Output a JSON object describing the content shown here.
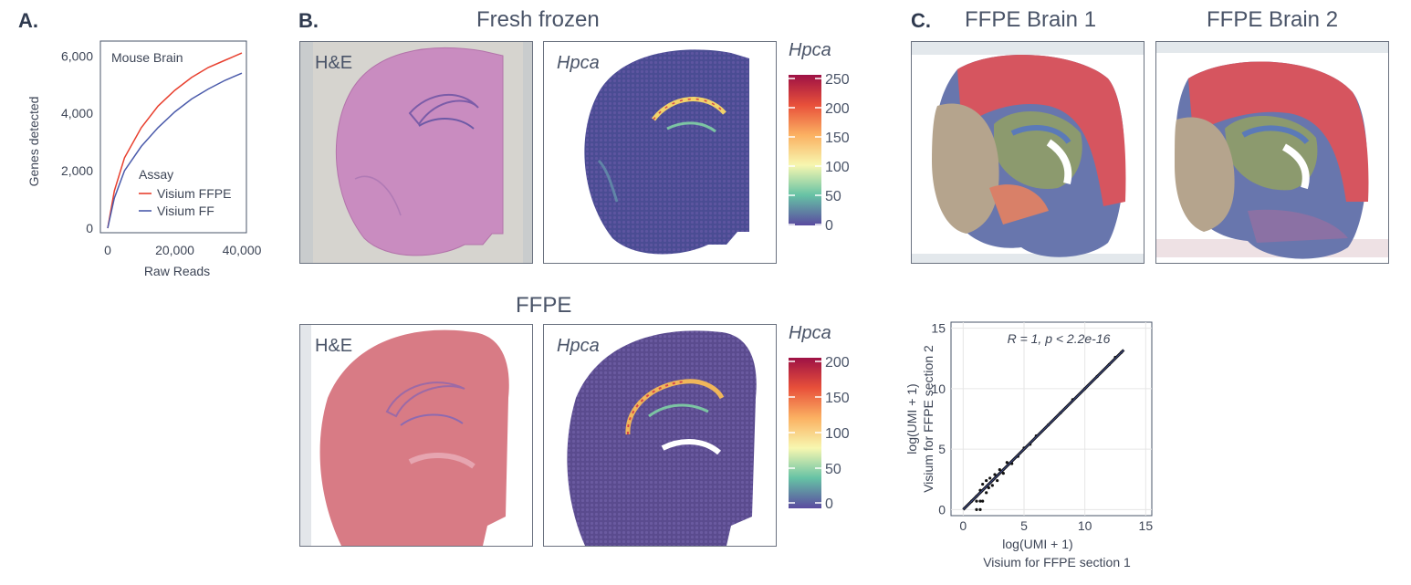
{
  "panel_labels": {
    "a": "A.",
    "b": "B.",
    "c": "C."
  },
  "panel_b": {
    "title_top": "Fresh frozen",
    "title_bottom": "FFPE",
    "he_label": "H&E",
    "gene_label": "Hpca",
    "colorbar_top": {
      "label": "Hpca",
      "ticks": [
        "250",
        "200",
        "150",
        "100",
        "50",
        "0"
      ]
    },
    "colorbar_bottom": {
      "label": "Hpca",
      "ticks": [
        "200",
        "150",
        "100",
        "50",
        "0"
      ]
    }
  },
  "panel_c": {
    "title_left": "FFPE Brain 1",
    "title_right": "FFPE Brain 2"
  },
  "colors": {
    "ffpe_line": "#e8402f",
    "ff_line": "#4b5bab",
    "he_pink": "#cf8ab8",
    "ffpe_pink": "#d9707e",
    "spot_base": "#5b4f9a"
  },
  "chart_data": [
    {
      "type": "line",
      "annotation": "Mouse Brain",
      "xlabel": "Raw Reads",
      "ylabel": "Genes detected",
      "xlim": [
        0,
        40000
      ],
      "ylim": [
        0,
        6200
      ],
      "xticks": [
        "0",
        "20,000",
        "40,000"
      ],
      "yticks": [
        "0",
        "2,000",
        "4,000",
        "6,000"
      ],
      "legend_title": "Assay",
      "legend_position": "center-right",
      "x": [
        0,
        2000,
        5000,
        10000,
        15000,
        20000,
        25000,
        30000,
        35000,
        40000
      ],
      "series": [
        {
          "name": "Visium FFPE",
          "values": [
            0,
            1300,
            2450,
            3500,
            4250,
            4800,
            5250,
            5600,
            5850,
            6100
          ]
        },
        {
          "name": "Visium FF",
          "values": [
            0,
            1050,
            2000,
            2850,
            3500,
            4050,
            4500,
            4850,
            5150,
            5400
          ]
        }
      ]
    },
    {
      "type": "scatter",
      "annotation": "R = 1, p < 2.2e-16",
      "xlabel": "log(UMI + 1)\nVisium for FFPE section 1",
      "ylabel": "log(UMI + 1)\nVisium for FFPE section 2",
      "xlim": [
        -1,
        15.5
      ],
      "ylim": [
        -0.5,
        15.5
      ],
      "xticks": [
        "0",
        "5",
        "10",
        "15"
      ],
      "yticks": [
        "0",
        "5",
        "10",
        "15"
      ],
      "grid": true,
      "trend": {
        "x": [
          0,
          13.2
        ],
        "y": [
          0,
          13.2
        ]
      },
      "x": [
        0.7,
        1.1,
        1.1,
        1.1,
        1.4,
        1.4,
        1.4,
        1.6,
        1.6,
        1.9,
        1.9,
        2.1,
        2.2,
        2.4,
        2.6,
        2.8,
        3.0,
        3.3,
        3.6,
        4.0,
        4.5,
        5.0,
        5.5,
        6.0,
        7.0,
        8.0,
        9.0,
        10.0,
        11.0,
        12.0,
        12.5,
        13.0
      ],
      "y": [
        0.7,
        0.0,
        0.7,
        1.1,
        0.0,
        0.7,
        1.6,
        0.7,
        2.1,
        1.4,
        2.4,
        1.8,
        2.6,
        2.0,
        2.9,
        2.4,
        3.3,
        3.0,
        3.9,
        3.8,
        4.4,
        5.1,
        5.4,
        6.1,
        7.0,
        8.0,
        9.1,
        10.0,
        11.0,
        12.0,
        12.6,
        13.0
      ]
    }
  ]
}
